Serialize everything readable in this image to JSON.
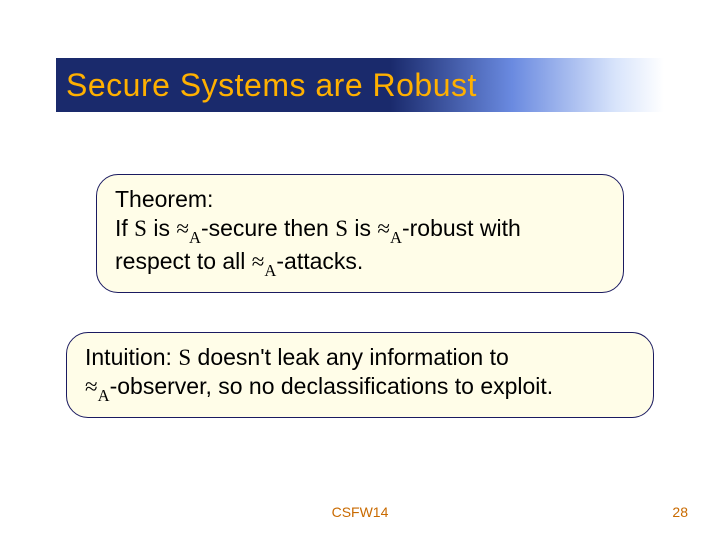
{
  "title": "Secure Systems are Robust",
  "theorem": {
    "label": "Theorem:",
    "line_prefix": "If ",
    "S": "S",
    "is": " is ",
    "approx": "≈",
    "A": "A",
    "secure_then": "-secure then ",
    "robust_with": "-robust with",
    "respect_line_prefix": "respect to all ",
    "attacks": "-attacks."
  },
  "intuition": {
    "prefix": "Intuition: ",
    "S": "S",
    "mid": " doesn't leak any information to",
    "approx": "≈",
    "A": "A",
    "observer_tail": "-observer, so no declassifications to exploit."
  },
  "footer": {
    "center": "CSFW14",
    "page": "28"
  },
  "colors": {
    "title_bg_start": "#1a2a6c",
    "title_text": "#ffb000",
    "box_bg": "#fffde8",
    "box_border": "#1a1a60",
    "footer": "#c96a00"
  }
}
